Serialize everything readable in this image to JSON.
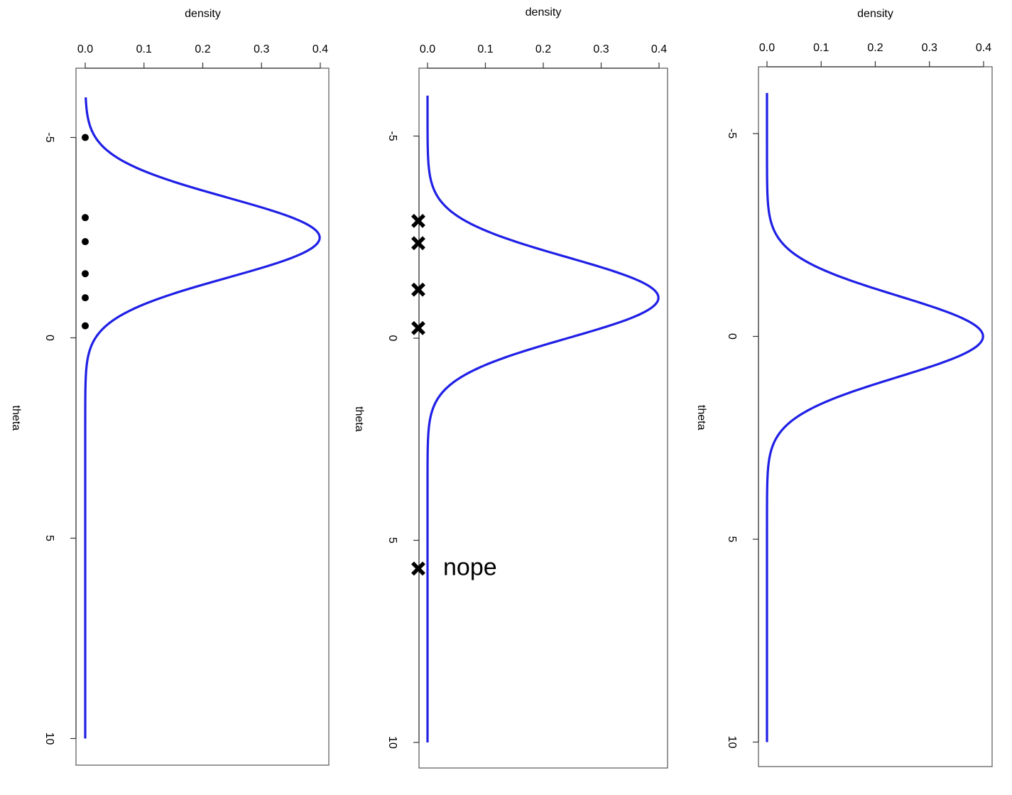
{
  "chart_data": [
    {
      "type": "line",
      "orientation": "rotated-90-clockwise",
      "xlabel": "theta",
      "ylabel": "density",
      "xlim": [
        -6,
        10
      ],
      "ylim": [
        0,
        0.4
      ],
      "x_ticks": [
        "-5",
        "0",
        "5",
        "10"
      ],
      "y_ticks": [
        "0.0",
        "0.1",
        "0.2",
        "0.3",
        "0.4"
      ],
      "curve": {
        "type": "normal-density",
        "mean": -2.5,
        "sd": 1,
        "color": "#1f1fe6"
      },
      "series": [
        {
          "marker": "dot",
          "x": [
            -5,
            -3,
            -2.4,
            -1.6,
            -1.0,
            -0.3
          ],
          "y": [
            0,
            0,
            0,
            0,
            0,
            0
          ],
          "color": "#000000"
        }
      ],
      "annotations": []
    },
    {
      "type": "line",
      "orientation": "rotated-90-clockwise",
      "xlabel": "theta",
      "ylabel": "density",
      "xlim": [
        -6,
        10
      ],
      "ylim": [
        0,
        0.4
      ],
      "x_ticks": [
        "-5",
        "0",
        "5",
        "10"
      ],
      "y_ticks": [
        "0.0",
        "0.1",
        "0.2",
        "0.3",
        "0.4"
      ],
      "curve": {
        "type": "normal-density",
        "mean": -1,
        "sd": 1,
        "color": "#1f1fe6"
      },
      "series": [
        {
          "marker": "cross",
          "x": [
            -2.9,
            -2.35,
            -1.2,
            -0.25,
            5.7
          ],
          "y": [
            0,
            0,
            0,
            0,
            0
          ],
          "color": "#000000"
        }
      ],
      "annotations": [
        {
          "text": "nope",
          "x": 5.7
        }
      ]
    },
    {
      "type": "line",
      "orientation": "rotated-90-clockwise",
      "xlabel": "theta",
      "ylabel": "density",
      "xlim": [
        -6,
        10
      ],
      "ylim": [
        0,
        0.4
      ],
      "x_ticks": [
        "-5",
        "0",
        "5",
        "10"
      ],
      "y_ticks": [
        "0.0",
        "0.1",
        "0.2",
        "0.3",
        "0.4"
      ],
      "curve": {
        "type": "normal-density",
        "mean": 0,
        "sd": 1,
        "color": "#1f1fe6"
      },
      "series": [],
      "annotations": []
    }
  ]
}
